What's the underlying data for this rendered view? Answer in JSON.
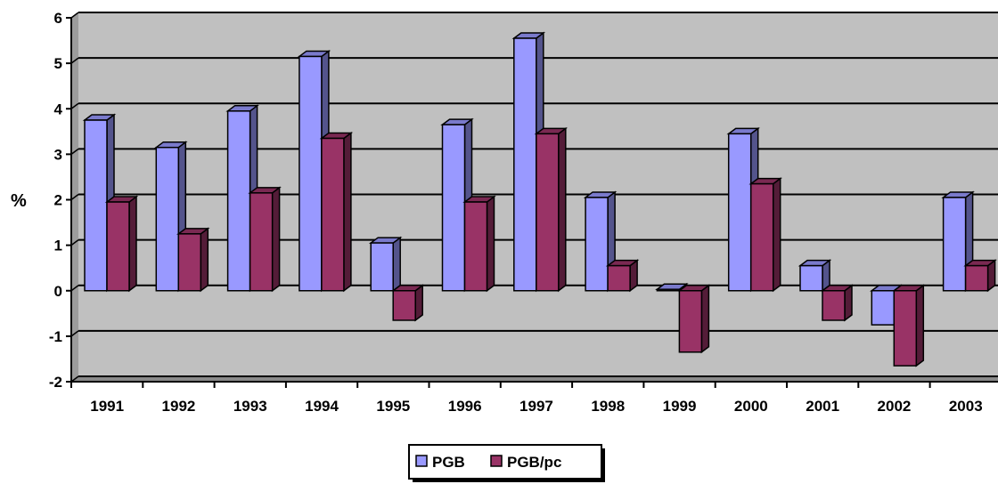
{
  "chart_data": {
    "type": "bar",
    "title": "",
    "xlabel": "",
    "ylabel": "%",
    "ylim": [
      -2,
      6
    ],
    "yticks": [
      "6",
      "5",
      "4",
      "3",
      "2",
      "1",
      "0",
      "-1",
      "-2"
    ],
    "categories": [
      "1991",
      "1992",
      "1993",
      "1994",
      "1995",
      "1996",
      "1997",
      "1998",
      "1999",
      "2000",
      "2001",
      "2002",
      "2003"
    ],
    "series": [
      {
        "name": "PGB",
        "color": "#9999ff",
        "values": [
          3.75,
          3.15,
          3.95,
          5.15,
          1.05,
          3.65,
          5.55,
          2.05,
          0.03,
          3.45,
          0.55,
          -0.75,
          2.05
        ]
      },
      {
        "name": "PGB/pc",
        "color": "#993366",
        "values": [
          1.95,
          1.25,
          2.15,
          3.35,
          -0.65,
          1.95,
          3.45,
          0.55,
          -1.35,
          2.35,
          -0.65,
          -1.65,
          0.55
        ]
      }
    ],
    "grid": true,
    "legend_position": "bottom",
    "plot_background": "#c0c0c0"
  }
}
